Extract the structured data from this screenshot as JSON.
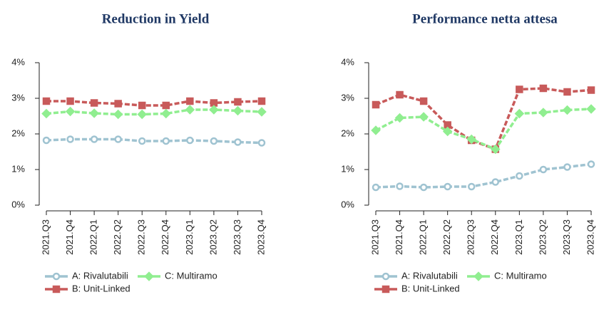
{
  "chart_data": [
    {
      "type": "line",
      "title": "Reduction in Yield",
      "categories": [
        "2021.Q3",
        "2021.Q4",
        "2022.Q1",
        "2022.Q2",
        "2022.Q3",
        "2022.Q4",
        "2023.Q1",
        "2023.Q2",
        "2023.Q3",
        "2023.Q4"
      ],
      "series": [
        {
          "name": "A: Rivalutabili",
          "color": "#9fc3d1",
          "values": [
            1.82,
            1.85,
            1.85,
            1.85,
            1.8,
            1.8,
            1.82,
            1.8,
            1.77,
            1.75
          ]
        },
        {
          "name": "B: Unit-Linked",
          "color": "#c85a5a",
          "values": [
            2.92,
            2.92,
            2.87,
            2.85,
            2.8,
            2.8,
            2.92,
            2.87,
            2.9,
            2.92
          ]
        },
        {
          "name": "C: Multiramo",
          "color": "#90ee90",
          "values": [
            2.57,
            2.63,
            2.58,
            2.55,
            2.55,
            2.57,
            2.68,
            2.68,
            2.65,
            2.62
          ]
        }
      ],
      "ylim": [
        0,
        4
      ],
      "yticks": [
        {
          "value": 0,
          "label": "0%"
        },
        {
          "value": 1,
          "label": "1%"
        },
        {
          "value": 2,
          "label": "2%"
        },
        {
          "value": 3,
          "label": "3%"
        },
        {
          "value": 4,
          "label": "4%"
        }
      ]
    },
    {
      "type": "line",
      "title": "Performance netta attesa",
      "categories": [
        "2021.Q3",
        "2021.Q4",
        "2022.Q1",
        "2022.Q2",
        "2022.Q3",
        "2022.Q4",
        "2023.Q1",
        "2023.Q2",
        "2023.Q3",
        "2023.Q4"
      ],
      "series": [
        {
          "name": "A: Rivalutabili",
          "color": "#9fc3d1",
          "values": [
            0.5,
            0.53,
            0.5,
            0.52,
            0.52,
            0.65,
            0.82,
            1.0,
            1.07,
            1.15
          ]
        },
        {
          "name": "B: Unit-Linked",
          "color": "#c85a5a",
          "values": [
            2.82,
            3.1,
            2.92,
            2.25,
            1.82,
            1.57,
            3.25,
            3.28,
            3.18,
            3.23
          ]
        },
        {
          "name": "C: Multiramo",
          "color": "#90ee90",
          "values": [
            2.1,
            2.45,
            2.48,
            2.07,
            1.85,
            1.57,
            2.57,
            2.6,
            2.67,
            2.7
          ]
        }
      ],
      "ylim": [
        0,
        4
      ],
      "yticks": [
        {
          "value": 0,
          "label": "0%"
        },
        {
          "value": 1,
          "label": "1%"
        },
        {
          "value": 2,
          "label": "2%"
        },
        {
          "value": 3,
          "label": "3%"
        },
        {
          "value": 4,
          "label": "4%"
        }
      ]
    }
  ]
}
